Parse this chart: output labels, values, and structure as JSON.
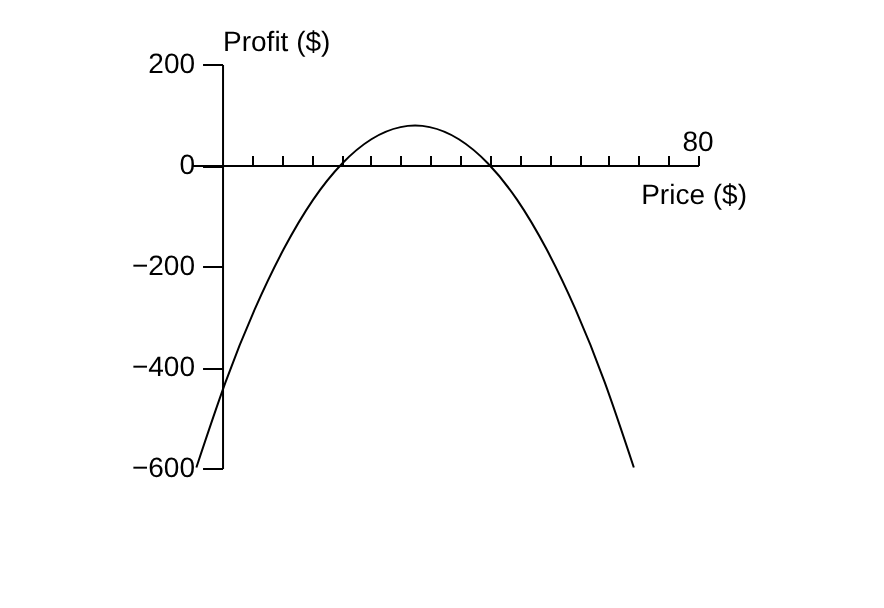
{
  "chart_data": {
    "type": "line",
    "xlabel": "Price ($)",
    "ylabel": "Profit ($)",
    "categories": [
      null,
      null,
      null,
      null,
      null,
      null,
      null,
      null,
      null,
      null,
      null,
      null,
      null,
      null,
      null,
      null
    ],
    "series": [
      {
        "color": "#000000",
        "values": [
          -599,
          -430,
          -286,
          -166,
          -69,
          3,
          51,
          75,
          75,
          51,
          3,
          -69,
          -166,
          -286,
          -430,
          -599
        ]
      }
    ],
    "ylim": [
      -600,
      200
    ],
    "yticks": [
      -600,
      -400,
      -200,
      0,
      200
    ],
    "annotations": [
      "80"
    ],
    "marker": "none",
    "line_style": "solid"
  }
}
